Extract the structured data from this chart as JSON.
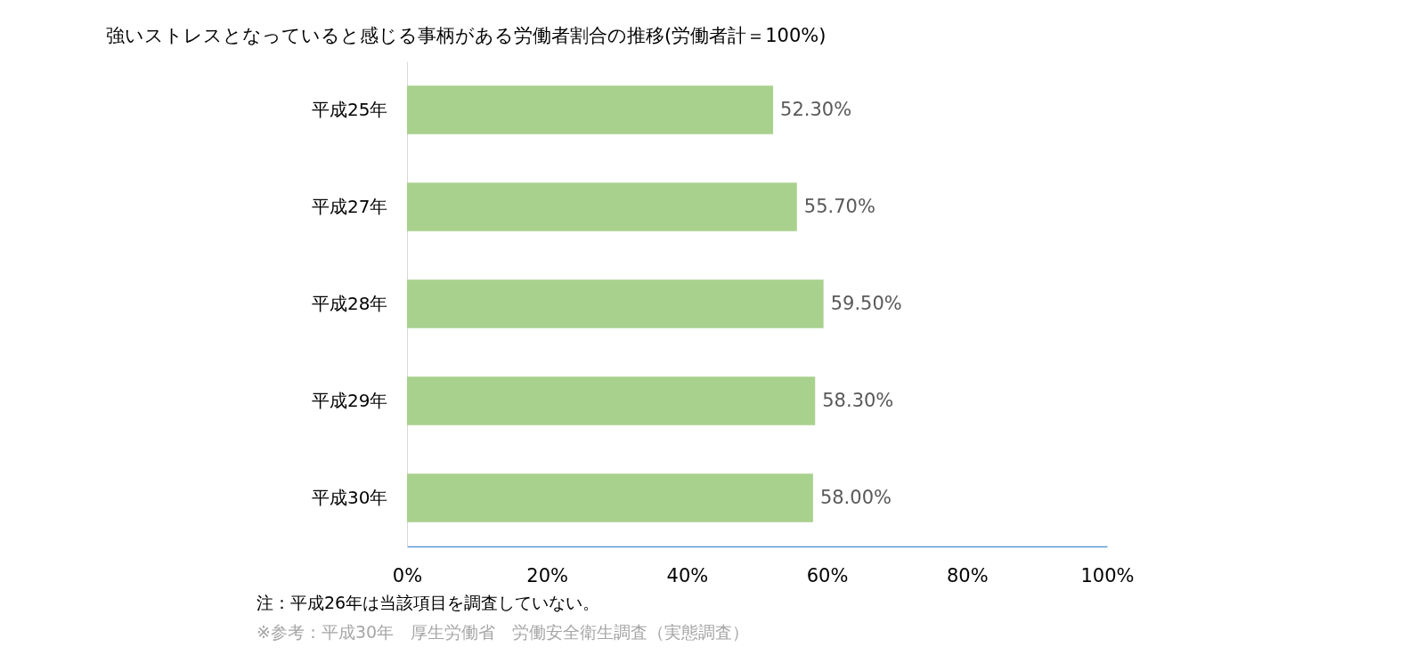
{
  "chart_data": {
    "type": "bar",
    "orientation": "horizontal",
    "title": "強いストレスとなっていると感じる事柄がある労働者割合の推移(労働者計＝100%)",
    "categories": [
      "平成25年",
      "平成27年",
      "平成28年",
      "平成29年",
      "平成30年"
    ],
    "values": [
      52.3,
      55.7,
      59.5,
      58.3,
      58.0
    ],
    "value_labels": [
      "52.30%",
      "55.70%",
      "59.50%",
      "58.30%",
      "58.00%"
    ],
    "color": "#a9d18e",
    "xlim": [
      0,
      100
    ],
    "xticks": [
      {
        "value": 0,
        "label": "0%"
      },
      {
        "value": 20,
        "label": "20%"
      },
      {
        "value": 40,
        "label": "40%"
      },
      {
        "value": 60,
        "label": "60%"
      },
      {
        "value": 80,
        "label": "80%"
      },
      {
        "value": 100,
        "label": "100%"
      }
    ],
    "grid": false,
    "annotations": [
      "注：平成26年は当該項目を調査していない。",
      "※参考：平成30年　厚生労働省　労働安全衛生調査（実態調査）"
    ]
  }
}
